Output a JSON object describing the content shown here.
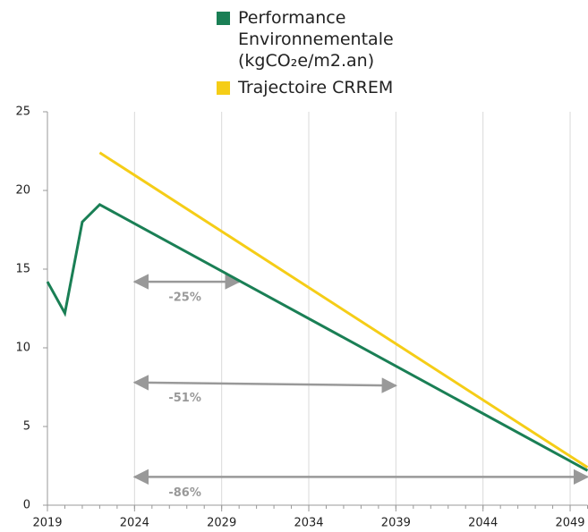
{
  "chart_data": {
    "type": "line",
    "x": [
      2019,
      2020,
      2021,
      2022,
      2050
    ],
    "series": [
      {
        "name": "Performance Environnementale (kgCO₂e/m2.an)",
        "color": "#1a7f55",
        "values": [
          14.2,
          12.2,
          18,
          19.1,
          2.2
        ]
      },
      {
        "name": "Trajectoire CRREM",
        "color": "#f5cd17",
        "values": [
          null,
          null,
          null,
          22.4,
          2.4
        ]
      }
    ],
    "xlim": [
      2019,
      2050
    ],
    "xticks": [
      2019,
      2024,
      2029,
      2034,
      2039,
      2044,
      2049
    ],
    "ylim": [
      0,
      25
    ],
    "yticks": [
      0,
      5,
      10,
      15,
      20,
      25
    ],
    "grid": true,
    "annotations": [
      {
        "text": "-25%",
        "x": [
          2024,
          2030
        ],
        "y": [
          14.2,
          14.2
        ]
      },
      {
        "text": "-51%",
        "x": [
          2024,
          2039
        ],
        "y": [
          7.8,
          7.6
        ]
      },
      {
        "text": "-86%",
        "x": [
          2024,
          2050
        ],
        "y": [
          1.8,
          1.8
        ]
      }
    ]
  }
}
